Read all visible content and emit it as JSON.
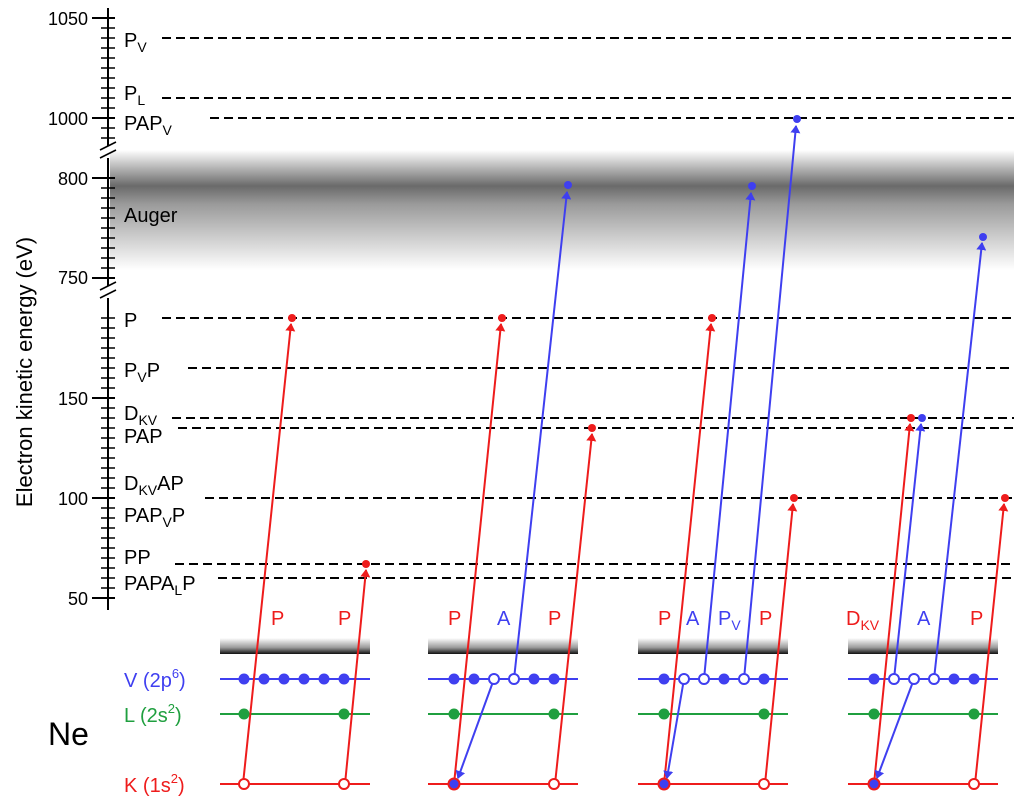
{
  "axis": {
    "ylabel": "Electron kinetic energy (eV)",
    "ticks": [
      "1050",
      "1000",
      "800",
      "750",
      "150",
      "100",
      "50"
    ]
  },
  "band_label": "Auger",
  "levels": [
    {
      "base": "P",
      "sub": "V",
      "tail": "",
      "energy": 1040
    },
    {
      "base": "P",
      "sub": "L",
      "tail": "",
      "energy": 1010
    },
    {
      "base": "PAP",
      "sub": "V",
      "tail": "",
      "energy": 1000
    },
    {
      "base": "P",
      "sub": "",
      "tail": "",
      "energy": 190
    },
    {
      "base": "P",
      "sub": "V",
      "tail": "P",
      "energy": 165
    },
    {
      "base": "D",
      "sub": "KV",
      "tail": "",
      "energy": 140
    },
    {
      "base": "PAP",
      "sub": "",
      "tail": "",
      "energy": 135
    },
    {
      "base": "D",
      "sub": "KV",
      "tail": "AP",
      "energy": 100
    },
    {
      "base": "PAP",
      "sub": "V",
      "tail": "P",
      "energy": 100
    },
    {
      "base": "PP",
      "sub": "",
      "tail": "",
      "energy": 67
    },
    {
      "base": "PAPA",
      "sub": "L",
      "tail": "P",
      "energy": 60
    }
  ],
  "atom": "Ne",
  "shells": [
    {
      "name": "V",
      "config_base": "(2p",
      "config_sup": "6",
      "config_end": ")",
      "color": "#3f3ff0"
    },
    {
      "name": "L",
      "config_base": "(2s",
      "config_sup": "2",
      "config_end": ")",
      "color": "#1f9f3f"
    },
    {
      "name": "K",
      "config_base": "(1s",
      "config_sup": "2",
      "config_end": ")",
      "color": "#ee1c1c"
    }
  ],
  "process_labels": [
    [
      {
        "base": "P",
        "sub": ""
      },
      {
        "base": "P",
        "sub": ""
      }
    ],
    [
      {
        "base": "P",
        "sub": ""
      },
      {
        "base": "A",
        "sub": ""
      },
      {
        "base": "P",
        "sub": ""
      }
    ],
    [
      {
        "base": "P",
        "sub": ""
      },
      {
        "base": "A",
        "sub": ""
      },
      {
        "base": "P",
        "sub": "V"
      },
      {
        "base": "P",
        "sub": ""
      }
    ],
    [
      {
        "base": "D",
        "sub": "KV"
      },
      {
        "base": "A",
        "sub": ""
      },
      {
        "base": "P",
        "sub": ""
      }
    ]
  ],
  "colors": {
    "photo": "#ee1c1c",
    "auger": "#3f3ff0",
    "l_shell": "#1f9f3f",
    "axis": "#000000"
  }
}
